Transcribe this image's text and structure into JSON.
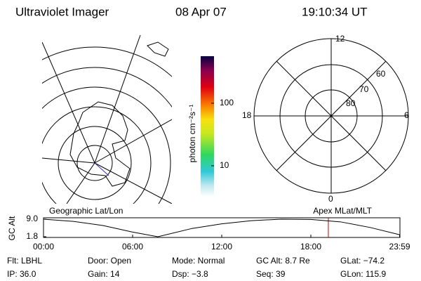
{
  "header": {
    "title": "Ultraviolet Imager",
    "date": "08 Apr 07",
    "time": "19:10:34 UT"
  },
  "colorbar": {
    "label": "photon cm⁻²s⁻¹",
    "log_scale": true,
    "lim": [
      3.2,
      565
    ],
    "ticks": [
      10,
      100
    ]
  },
  "maps": {
    "left_label": "Geographic Lat/Lon",
    "right_label": "Apex MLat/MLT",
    "mlt_labels": [
      "12",
      "18",
      "6",
      "0"
    ],
    "mlat_labels": [
      "60",
      "70",
      "80"
    ]
  },
  "chart_data": {
    "type": "line",
    "ylabel": "GC Alt",
    "x": [
      0,
      2,
      4,
      6,
      7.7,
      10,
      12,
      14,
      16,
      18,
      20,
      22,
      24
    ],
    "series": [
      {
        "name": "GC Alt",
        "color": "#000000",
        "values": [
          9.0,
          8.1,
          6.4,
          3.7,
          1.8,
          5.2,
          7.1,
          8.4,
          9.0,
          8.9,
          7.9,
          5.6,
          2.6
        ]
      }
    ],
    "xlim": [
      0,
      24
    ],
    "ylim": [
      1.8,
      9.0
    ],
    "xticks": [
      {
        "value": 0,
        "label": "00:00"
      },
      {
        "value": 6,
        "label": "06:00"
      },
      {
        "value": 12,
        "label": "12:00"
      },
      {
        "value": 18,
        "label": "18:00"
      },
      {
        "value": 23.98,
        "label": "23:59"
      }
    ],
    "yticks": [
      {
        "value": 1.8,
        "label": "1.8"
      },
      {
        "value": 9.0,
        "label": "9.0"
      }
    ],
    "marker_x": 19.18,
    "marker_color": "#cc0000"
  },
  "info": [
    [
      "Flt: LBHL",
      "Door: Open",
      "Mode: Normal",
      "GC Alt: 8.7 Re",
      "GLat: −74.2"
    ],
    [
      "IP: 36.0",
      "Gain: 14",
      "Dsp:  −3.8",
      "Seq: 39",
      "GLon: 115.9"
    ]
  ]
}
